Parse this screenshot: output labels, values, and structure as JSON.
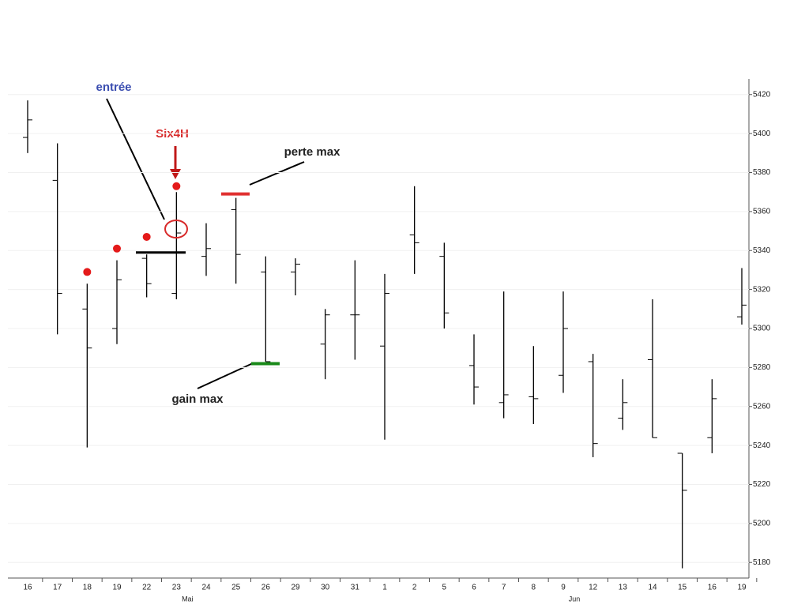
{
  "chart_data": {
    "type": "ohlc",
    "categories": [
      "16",
      "17",
      "18",
      "19",
      "22",
      "23",
      "24",
      "25",
      "26",
      "29",
      "30",
      "31",
      "1",
      "2",
      "5",
      "6",
      "7",
      "8",
      "9",
      "12",
      "13",
      "14",
      "15",
      "16",
      "19"
    ],
    "month_labels": [
      null,
      null,
      null,
      null,
      null,
      "Mai",
      null,
      null,
      null,
      null,
      null,
      null,
      null,
      null,
      null,
      null,
      null,
      null,
      "Jun",
      null,
      null,
      null,
      null,
      null,
      null
    ],
    "open": [
      5398,
      5376,
      5310,
      5300,
      5336,
      5318,
      5337,
      5361,
      5329,
      5329,
      5292,
      5307,
      5291,
      5348,
      5337,
      5281,
      5262,
      5265,
      5276,
      5283,
      5254,
      5284,
      5236,
      5244,
      5306
    ],
    "high": [
      5417,
      5395,
      5323,
      5335,
      5338,
      5370,
      5354,
      5367,
      5337,
      5336,
      5310,
      5335,
      5328,
      5373,
      5344,
      5297,
      5319,
      5291,
      5319,
      5287,
      5274,
      5315,
      5236,
      5274,
      5331
    ],
    "low": [
      5390,
      5297,
      5239,
      5292,
      5316,
      5315,
      5327,
      5323,
      5283,
      5317,
      5274,
      5284,
      5243,
      5328,
      5300,
      5261,
      5254,
      5251,
      5267,
      5234,
      5248,
      5244,
      5177,
      5236,
      5302
    ],
    "close": [
      5407,
      5318,
      5290,
      5325,
      5323,
      5349,
      5341,
      5338,
      5283,
      5333,
      5307,
      5307,
      5318,
      5344,
      5308,
      5270,
      5266,
      5264,
      5300,
      5241,
      5262,
      5244,
      5217,
      5264,
      5312
    ],
    "color": "#000000",
    "ylim": [
      5172,
      5428
    ],
    "yticks": [
      5180,
      5200,
      5220,
      5240,
      5260,
      5280,
      5300,
      5320,
      5340,
      5360,
      5380,
      5400,
      5420
    ],
    "grid": true,
    "annotations": {
      "entry_label": "entrée",
      "signal_label": "Six4H",
      "stop_label": "perte max",
      "target_label": "gain max",
      "signal_dots": [
        null,
        null,
        5329,
        5341,
        5347,
        5373,
        null,
        null,
        null,
        null,
        null,
        null,
        null,
        null,
        null,
        null,
        null,
        null,
        null,
        null,
        null,
        null,
        null,
        null,
        null
      ],
      "entry_level": 5339,
      "stop_level": 5369,
      "target_level": 5282
    }
  }
}
